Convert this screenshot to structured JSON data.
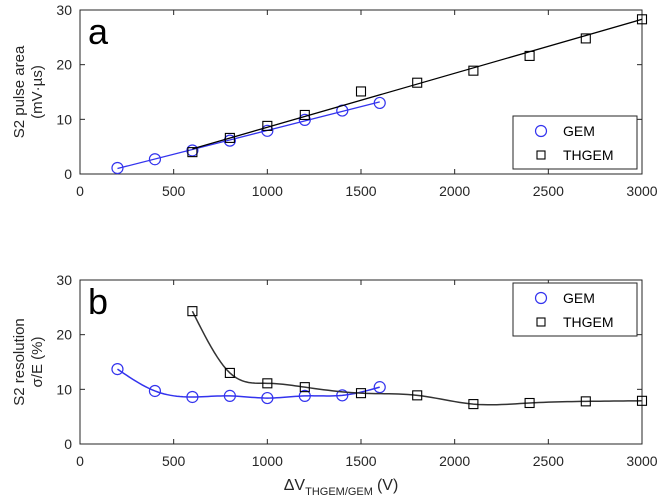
{
  "chart_data": [
    {
      "type": "scatter",
      "panel_label": "a",
      "title": "",
      "xlabel": "",
      "ylabel": "S2 pulse area",
      "ylabel_unit": "(mV·µs)",
      "xlim": [
        0,
        3000
      ],
      "ylim": [
        0,
        30
      ],
      "x_ticks": [
        0,
        500,
        1000,
        1500,
        2000,
        2500,
        3000
      ],
      "y_ticks": [
        0,
        10,
        20,
        30
      ],
      "grid": false,
      "legend_placement": "bottom-right",
      "series": [
        {
          "name": "GEM",
          "marker": "circle",
          "color": "#3333ee",
          "x": [
            200,
            400,
            600,
            800,
            1000,
            1200,
            1400,
            1600
          ],
          "y": [
            1.1,
            2.7,
            4.3,
            6.1,
            7.9,
            9.9,
            11.6,
            13.0
          ],
          "fit_line": [
            [
              200,
              1.0
            ],
            [
              1600,
              13.2
            ]
          ]
        },
        {
          "name": "THGEM",
          "marker": "square",
          "color": "#000000",
          "x": [
            600,
            800,
            1000,
            1200,
            1500,
            1800,
            2100,
            2400,
            2700,
            3000
          ],
          "y": [
            4.0,
            6.6,
            8.8,
            10.8,
            15.1,
            16.7,
            18.9,
            21.6,
            24.8,
            28.3
          ],
          "fit_line": [
            [
              600,
              4.6
            ],
            [
              3000,
              28.3
            ]
          ]
        }
      ]
    },
    {
      "type": "line",
      "panel_label": "b",
      "title": "",
      "xlabel": "ΔV",
      "xlabel_sub": "THGEM/GEM",
      "xlabel_unit": "(V)",
      "ylabel": "S2 resolution",
      "ylabel_unit": "σ/E (%)",
      "xlim": [
        0,
        3000
      ],
      "ylim": [
        0,
        30
      ],
      "x_ticks": [
        0,
        500,
        1000,
        1500,
        2000,
        2500,
        3000
      ],
      "y_ticks": [
        0,
        10,
        20,
        30
      ],
      "grid": false,
      "legend_placement": "top-right",
      "series": [
        {
          "name": "GEM",
          "marker": "circle",
          "color": "#3333ee",
          "x": [
            200,
            400,
            600,
            800,
            1000,
            1200,
            1400,
            1600
          ],
          "y": [
            13.7,
            9.7,
            8.6,
            8.8,
            8.4,
            8.8,
            8.9,
            10.4
          ]
        },
        {
          "name": "THGEM",
          "marker": "square",
          "color": "#000000",
          "x": [
            600,
            800,
            1000,
            1200,
            1500,
            1800,
            2100,
            2400,
            2700,
            3000
          ],
          "y": [
            24.3,
            13.0,
            11.1,
            10.4,
            9.3,
            8.9,
            7.3,
            7.5,
            7.8,
            7.9
          ]
        }
      ]
    }
  ]
}
